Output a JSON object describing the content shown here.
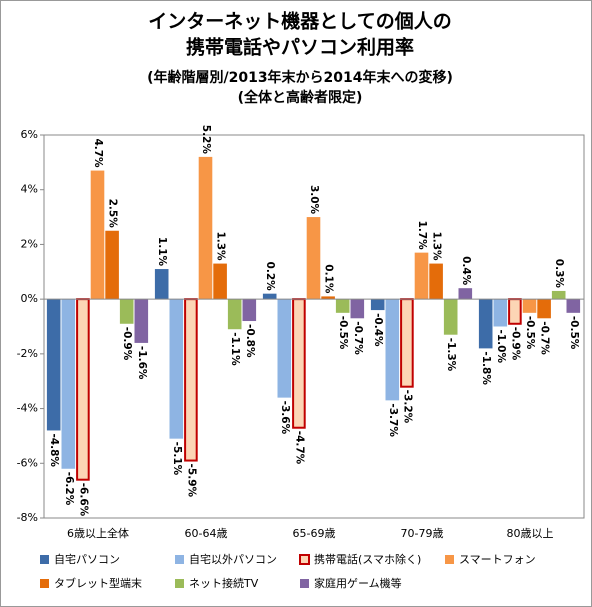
{
  "chart_data": {
    "type": "bar",
    "title": [
      "インターネット機器としての個人の",
      "携帯電話やパソコン利用率"
    ],
    "subtitle": [
      "(年齢階層別/2013年末から2014年末への変移)",
      "(全体と高齢者限定)"
    ],
    "categories": [
      "6歳以上全体",
      "60-64歳",
      "65-69歳",
      "70-79歳",
      "80歳以上"
    ],
    "series": [
      {
        "name": "自宅パソコン",
        "color": "#3d6ca8",
        "values": [
          -4.8,
          1.1,
          0.2,
          -0.4,
          -1.8
        ],
        "value_labels": [
          "-4.8%",
          "1.1%",
          "0.2%",
          "-0.4%",
          "-1.8%"
        ]
      },
      {
        "name": "自宅以外パソコン",
        "color": "#8eb4e3",
        "values": [
          -6.2,
          -5.1,
          -3.6,
          -3.7,
          -1.0
        ],
        "value_labels": [
          "-6.2%",
          "-5.1%",
          "-3.6%",
          "-3.7%",
          "-1.0%"
        ]
      },
      {
        "name": "携帯電話(スマホ除く)",
        "color": "#fcd5b5",
        "border": "#c00000",
        "values": [
          -6.6,
          -5.9,
          -4.7,
          -3.2,
          -0.9
        ],
        "value_labels": [
          "-6.6%",
          "-5.9%",
          "-4.7%",
          "-3.2%",
          "-0.9%"
        ]
      },
      {
        "name": "スマートフォン",
        "color": "#f79646",
        "values": [
          4.7,
          5.2,
          3.0,
          1.7,
          -0.5
        ],
        "value_labels": [
          "4.7%",
          "5.2%",
          "3.0%",
          "1.7%",
          "-0.5%"
        ]
      },
      {
        "name": "タブレット型端末",
        "color": "#e46c0a",
        "values": [
          2.5,
          1.3,
          0.1,
          1.3,
          -0.7
        ],
        "value_labels": [
          "2.5%",
          "1.3%",
          "0.1%",
          "1.3%",
          "-0.7%"
        ]
      },
      {
        "name": "ネット接続TV",
        "color": "#9bbb59",
        "values": [
          -0.9,
          -1.1,
          -0.5,
          -1.3,
          0.3
        ],
        "value_labels": [
          "-0.9%",
          "-1.1%",
          "-0.5%",
          "-1.3%",
          "0.3%"
        ]
      },
      {
        "name": "家庭用ゲーム機等",
        "color": "#8064a2",
        "values": [
          -1.6,
          -0.8,
          -0.7,
          0.4,
          -0.5
        ],
        "value_labels": [
          "-1.6%",
          "-0.8%",
          "-0.7%",
          "0.4%",
          "-0.5%"
        ]
      }
    ],
    "ylim": [
      -8,
      6
    ],
    "yticks": [
      {
        "value": -8,
        "label": "-8%"
      },
      {
        "value": -6,
        "label": "-6%"
      },
      {
        "value": -4,
        "label": "-4%"
      },
      {
        "value": -2,
        "label": "-2%"
      },
      {
        "value": 0,
        "label": "0%"
      },
      {
        "value": 2,
        "label": "2%"
      },
      {
        "value": 4,
        "label": "4%"
      },
      {
        "value": 6,
        "label": "6%"
      }
    ],
    "grid": false
  }
}
